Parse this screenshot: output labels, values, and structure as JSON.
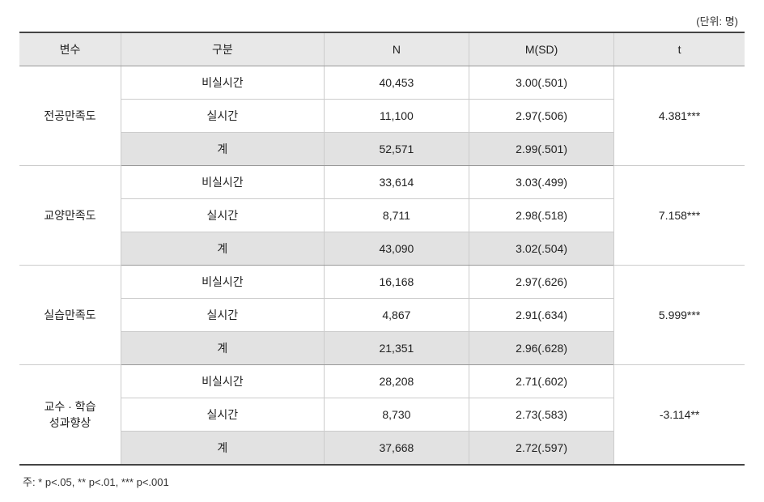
{
  "unit_label": "(단위: 명)",
  "headers": {
    "variable": "변수",
    "category": "구분",
    "n": "N",
    "msd": "M(SD)",
    "t": "t"
  },
  "groups": [
    {
      "variable": "전공만족도",
      "t_value": "4.381***",
      "rows": [
        {
          "category": "비실시간",
          "n": "40,453",
          "msd": "3.00(.501)"
        },
        {
          "category": "실시간",
          "n": "11,100",
          "msd": "2.97(.506)"
        },
        {
          "category": "계",
          "n": "52,571",
          "msd": "2.99(.501)",
          "subtotal": true
        }
      ]
    },
    {
      "variable": "교양만족도",
      "t_value": "7.158***",
      "rows": [
        {
          "category": "비실시간",
          "n": "33,614",
          "msd": "3.03(.499)"
        },
        {
          "category": "실시간",
          "n": "8,711",
          "msd": "2.98(.518)"
        },
        {
          "category": "계",
          "n": "43,090",
          "msd": "3.02(.504)",
          "subtotal": true
        }
      ]
    },
    {
      "variable": "실습만족도",
      "t_value": "5.999***",
      "rows": [
        {
          "category": "비실시간",
          "n": "16,168",
          "msd": "2.97(.626)"
        },
        {
          "category": "실시간",
          "n": "4,867",
          "msd": "2.91(.634)"
        },
        {
          "category": "계",
          "n": "21,351",
          "msd": "2.96(.628)",
          "subtotal": true
        }
      ]
    },
    {
      "variable": "교수 · 학습\n성과향상",
      "t_value": "-3.114**",
      "rows": [
        {
          "category": "비실시간",
          "n": "28,208",
          "msd": "2.71(.602)"
        },
        {
          "category": "실시간",
          "n": "8,730",
          "msd": "2.73(.583)"
        },
        {
          "category": "계",
          "n": "37,668",
          "msd": "2.72(.597)",
          "subtotal": true
        }
      ]
    }
  ],
  "footnote": "주: * p<.05,  ** p<.01,  *** p<.001"
}
